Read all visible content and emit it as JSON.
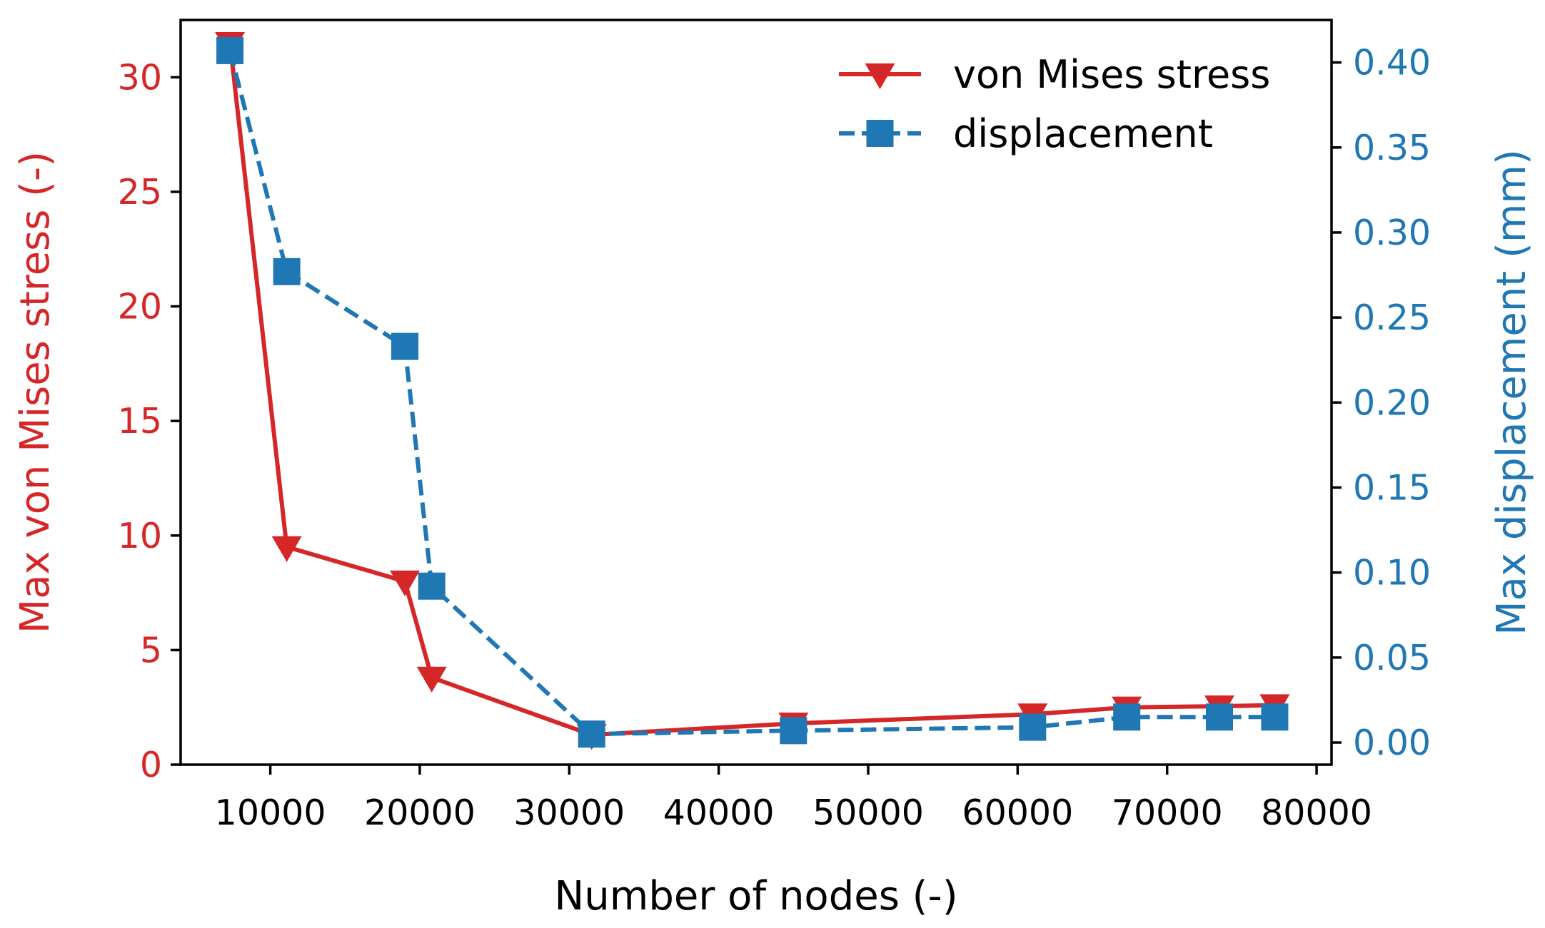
{
  "chart_data": {
    "type": "line",
    "title": "",
    "xlabel": "Number of nodes (-)",
    "ylabel_left": "Max von Mises stress (-)",
    "ylabel_right": "Max displacement (mm)",
    "xlim": [
      4000,
      81000
    ],
    "ylim_left": [
      0,
      32.5
    ],
    "ylim_right": [
      -0.013,
      0.425
    ],
    "x_ticks": [
      10000,
      20000,
      30000,
      40000,
      50000,
      60000,
      70000,
      80000
    ],
    "x_tick_labels": [
      "10000",
      "20000",
      "30000",
      "40000",
      "50000",
      "60000",
      "70000",
      "80000"
    ],
    "y_left_ticks": [
      0,
      5,
      10,
      15,
      20,
      25,
      30
    ],
    "y_left_tick_labels": [
      "0",
      "5",
      "10",
      "15",
      "20",
      "25",
      "30"
    ],
    "y_right_ticks": [
      0.0,
      0.05,
      0.1,
      0.15,
      0.2,
      0.25,
      0.3,
      0.35,
      0.4
    ],
    "y_right_tick_labels": [
      "0.00",
      "0.05",
      "0.10",
      "0.15",
      "0.20",
      "0.25",
      "0.30",
      "0.35",
      "0.40"
    ],
    "grid": false,
    "legend_position": "top-right",
    "series": [
      {
        "name": "von Mises stress",
        "axis": "left",
        "color": "#d62728",
        "marker": "triangle-down",
        "linestyle": "solid",
        "x": [
          7300,
          11100,
          19000,
          20800,
          31500,
          45000,
          61000,
          67300,
          73500,
          77200
        ],
        "values": [
          31.5,
          9.5,
          8.0,
          3.8,
          1.3,
          1.8,
          2.2,
          2.5,
          2.55,
          2.6
        ]
      },
      {
        "name": "displacement",
        "axis": "right",
        "color": "#1f77b4",
        "marker": "square",
        "linestyle": "dashed",
        "x": [
          7300,
          11100,
          19000,
          20800,
          31500,
          45000,
          61000,
          67300,
          73500,
          77200
        ],
        "values": [
          0.407,
          0.277,
          0.233,
          0.092,
          0.005,
          0.007,
          0.009,
          0.015,
          0.015,
          0.015
        ]
      }
    ]
  }
}
